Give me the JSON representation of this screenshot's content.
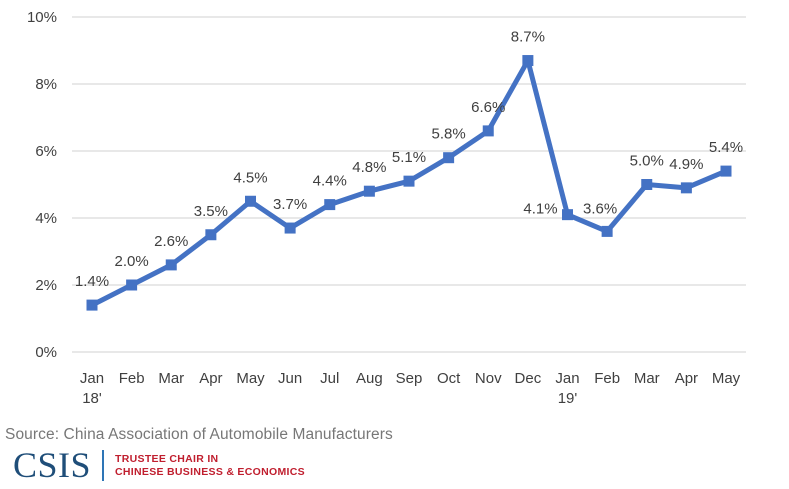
{
  "chart_data": {
    "type": "line",
    "title": "",
    "xlabel": "",
    "ylabel": "",
    "categories": [
      "Jan",
      "Feb",
      "Mar",
      "Apr",
      "May",
      "Jun",
      "Jul",
      "Aug",
      "Sep",
      "Oct",
      "Nov",
      "Dec",
      "Jan",
      "Feb",
      "Mar",
      "Apr",
      "May"
    ],
    "year_labels": [
      {
        "index": 0,
        "label": "18'"
      },
      {
        "index": 12,
        "label": "19'"
      }
    ],
    "values": [
      1.4,
      2.0,
      2.6,
      3.5,
      4.5,
      3.7,
      4.4,
      4.8,
      5.1,
      5.8,
      6.6,
      8.7,
      4.1,
      3.6,
      5.0,
      4.9,
      5.4
    ],
    "data_labels": [
      "1.4%",
      "2.0%",
      "2.6%",
      "3.5%",
      "4.5%",
      "3.7%",
      "4.4%",
      "4.8%",
      "5.1%",
      "5.8%",
      "6.6%",
      "8.7%",
      "4.1%",
      "3.6%",
      "5.0%",
      "4.9%",
      "5.4%"
    ],
    "y_ticks": [
      "0%",
      "2%",
      "4%",
      "6%",
      "8%",
      "10%"
    ],
    "ylim": [
      0,
      10
    ],
    "grid": true,
    "legend": "none",
    "line_color": "#4472C4",
    "marker": "square",
    "gridline_color": "#d9d9d9",
    "axis_text_color": "#404040",
    "label_text_color": "#404040"
  },
  "source": {
    "text": "Source: China Association of Automobile Manufacturers"
  },
  "logo": {
    "csis": "CSIS",
    "line1": "TRUSTEE CHAIR IN",
    "line2": "CHINESE BUSINESS & ECONOMICS",
    "csis_color": "#1f4e79",
    "divider_color": "#2e75b6",
    "accent_color": "#c01e2e"
  }
}
